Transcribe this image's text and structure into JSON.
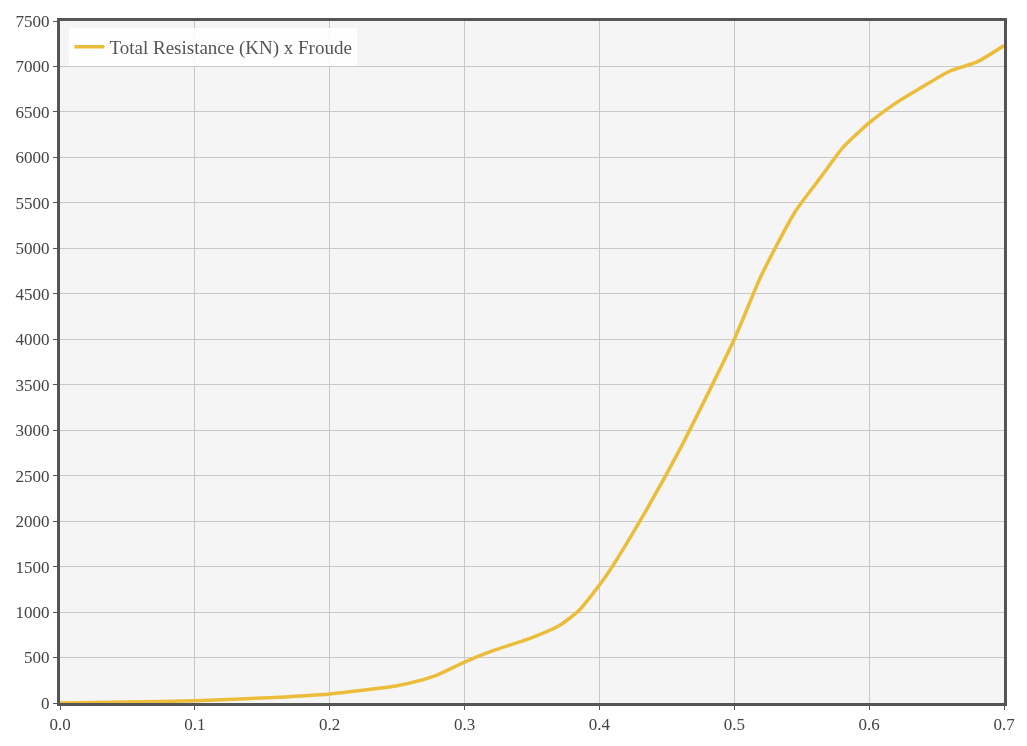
{
  "chart_data": {
    "type": "line",
    "x": [
      0,
      0.05,
      0.1,
      0.15,
      0.2,
      0.25,
      0.265,
      0.28,
      0.3,
      0.32,
      0.35,
      0.37,
      0.385,
      0.405,
      0.43,
      0.46,
      0.5,
      0.52,
      0.545,
      0.565,
      0.58,
      0.6,
      0.62,
      0.64,
      0.66,
      0.68,
      0.7
    ],
    "series": [
      {
        "name": "Total Resistance (KN) x Froude",
        "color": "#ebbd3a",
        "values": [
          0,
          10,
          25,
          55,
          100,
          190,
          240,
          310,
          450,
          570,
          720,
          850,
          1020,
          1400,
          2000,
          2800,
          4000,
          4700,
          5400,
          5800,
          6100,
          6380,
          6600,
          6780,
          6950,
          7050,
          7230
        ]
      }
    ],
    "xlim": [
      0,
      0.7
    ],
    "xticks": [
      {
        "value": 0,
        "label": "0.0"
      },
      0.1,
      0.2,
      0.3,
      0.4,
      0.5,
      0.6,
      0.7
    ],
    "ylim": [
      0,
      7500
    ],
    "yticks": [
      0,
      500,
      1000,
      1500,
      2000,
      2500,
      3000,
      3500,
      4000,
      4500,
      5000,
      5500,
      6000,
      6500,
      7000,
      7500
    ],
    "grid": true,
    "legend": "top left",
    "marker": "none",
    "line_style": "solid"
  }
}
